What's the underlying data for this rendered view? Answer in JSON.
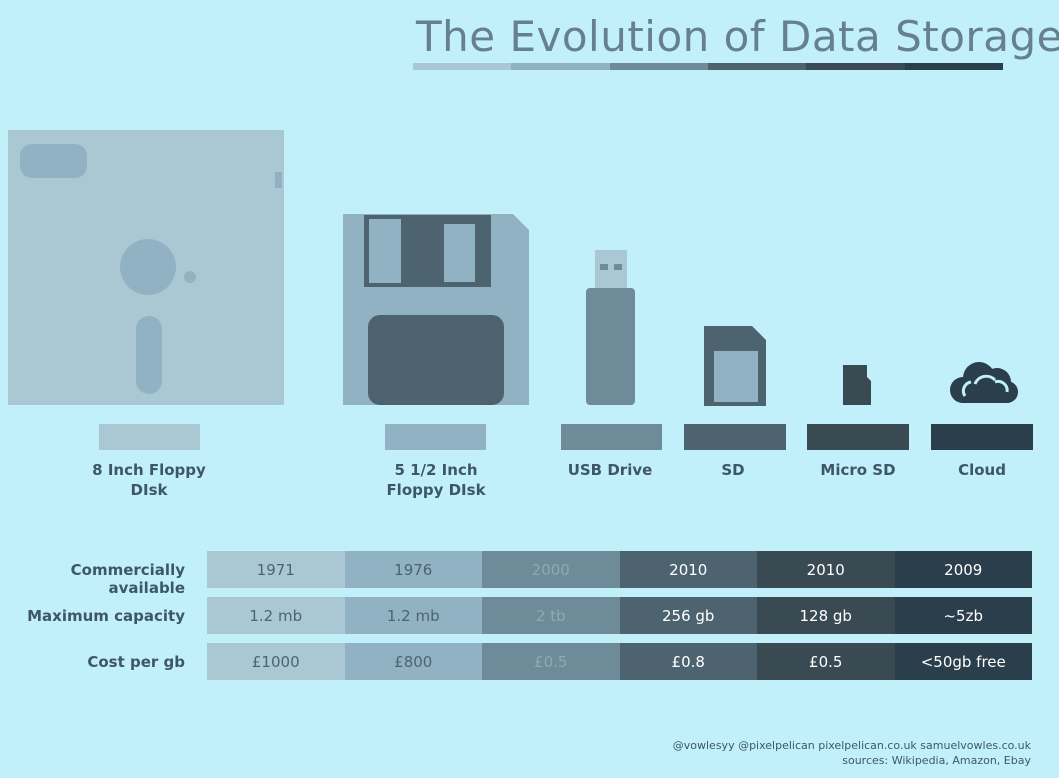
{
  "title": "The Evolution of Data Storage",
  "colors": {
    "background": "#c2f0fa",
    "col1": "#a9c8d3",
    "col2": "#90b2c2",
    "col3": "#6e8b99",
    "col4": "#4d6470",
    "col5": "#3a4a52",
    "col6": "#2a3e4b",
    "col3_text": "#8ea8b5"
  },
  "devices": [
    {
      "name": "8 Inch Floppy\nDIsk",
      "icon": "floppy-8in-icon"
    },
    {
      "name": "5 1/2 Inch\nFloppy DIsk",
      "icon": "floppy-5in-icon"
    },
    {
      "name": "USB Drive",
      "icon": "usb-drive-icon"
    },
    {
      "name": "SD",
      "icon": "sd-card-icon"
    },
    {
      "name": "Micro SD",
      "icon": "micro-sd-icon"
    },
    {
      "name": "Cloud",
      "icon": "cloud-icon"
    }
  ],
  "table": {
    "rows": [
      {
        "label": "Commercially available",
        "values": [
          "1971",
          "1976",
          "2000",
          "2010",
          "2010",
          "2009"
        ]
      },
      {
        "label": "Maximum capacity",
        "values": [
          "1.2 mb",
          "1.2 mb",
          "2 tb",
          "256 gb",
          "128 gb",
          "~5zb"
        ]
      },
      {
        "label": "Cost per gb",
        "values": [
          "£1000",
          "£800",
          "£0.5",
          "£0.8",
          "£0.5",
          "<50gb free"
        ]
      }
    ]
  },
  "credits": {
    "line1": "@vowlesyy @pixelpelican pixelpelican.co.uk samuelvowles.co.uk",
    "line2": "sources: Wikipedia, Amazon, Ebay"
  }
}
